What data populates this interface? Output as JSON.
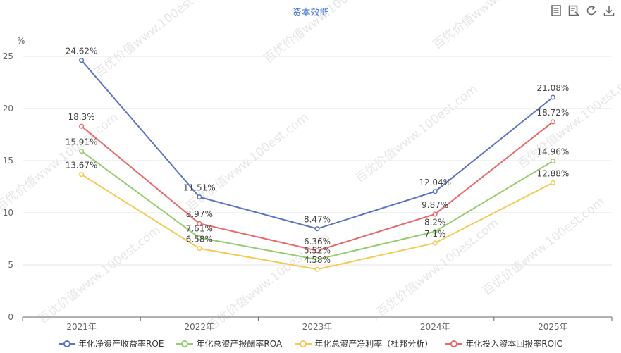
{
  "chart_data": {
    "type": "line",
    "title": "资本效能",
    "ylabel": "%",
    "ylim": [
      0,
      25
    ],
    "yticks": [
      0,
      5,
      10,
      15,
      20,
      25
    ],
    "categories": [
      "2021年",
      "2022年",
      "2023年",
      "2024年",
      "2025年"
    ],
    "series": [
      {
        "name": "年化净资产收益率ROE",
        "color": "#5b73c7",
        "values": [
          24.62,
          11.51,
          8.47,
          12.04,
          21.08
        ],
        "labels": [
          "24.62%",
          "11.51%",
          "8.47%",
          "12.04%",
          "21.08%"
        ]
      },
      {
        "name": "年化总资产报酬率ROA",
        "color": "#95cc6e",
        "values": [
          15.91,
          7.61,
          5.52,
          8.2,
          14.96
        ],
        "labels": [
          "15.91%",
          "7.61%",
          "5.52%",
          "8.2%",
          "14.96%"
        ]
      },
      {
        "name": "年化总资产净利率（杜邦分析）",
        "color": "#f6c955",
        "values": [
          13.67,
          6.58,
          4.58,
          7.1,
          12.88
        ],
        "labels": [
          "13.67%",
          "6.58%",
          "4.58%",
          "7.1%",
          "12.88%"
        ]
      },
      {
        "name": "年化投入资本回报率ROIC",
        "color": "#e8696a",
        "values": [
          18.3,
          8.97,
          6.36,
          9.87,
          18.72
        ],
        "labels": [
          "18.3%",
          "8.97%",
          "6.36%",
          "9.87%",
          "18.72%"
        ]
      }
    ],
    "grid": true,
    "legend": "bottom"
  },
  "watermark": "百优价值www.100est.com",
  "toolbar": {
    "icons": [
      "data-view-icon",
      "chart-type-icon",
      "restore-icon",
      "download-icon"
    ]
  }
}
